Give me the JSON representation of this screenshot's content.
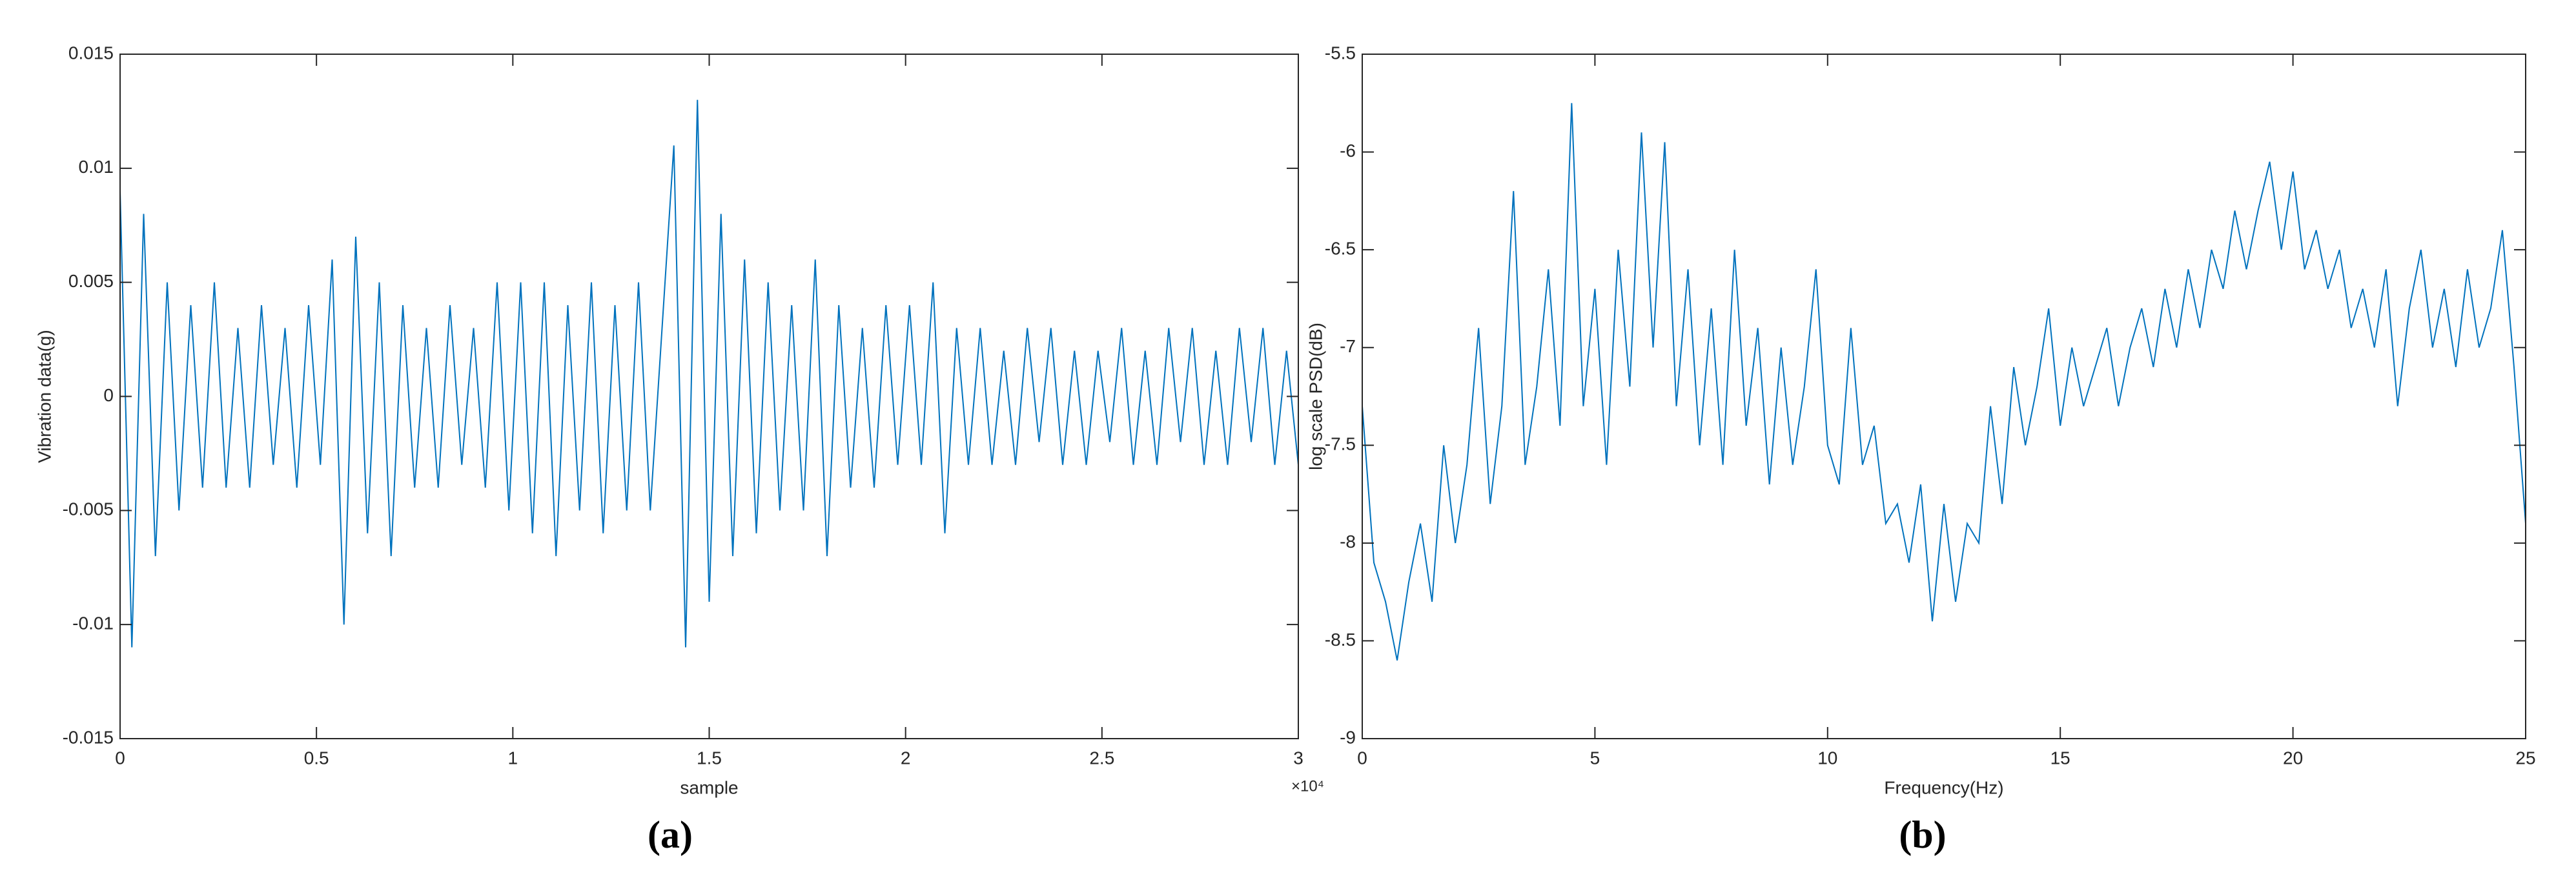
{
  "chart_data": [
    {
      "type": "line",
      "color": "#0072bd",
      "caption": "(a)",
      "xlabel": "sample",
      "ylabel": "Vibration data(g)",
      "x_multiplier": "×10⁴",
      "xlim": [
        0,
        30000
      ],
      "ylim": [
        -0.015,
        0.015
      ],
      "xticks": [
        0,
        {
          "value": 5000,
          "label": "0.5"
        },
        {
          "value": 10000,
          "label": "1"
        },
        {
          "value": 15000,
          "label": "1.5"
        },
        {
          "value": 20000,
          "label": "2"
        },
        {
          "value": 25000,
          "label": "2.5"
        },
        {
          "value": 30000,
          "label": "3"
        }
      ],
      "yticks": [
        -0.015,
        -0.01,
        -0.005,
        0,
        0.005,
        0.01,
        0.015
      ],
      "x": [
        0,
        300,
        600,
        900,
        1200,
        1500,
        1800,
        2100,
        2400,
        2700,
        3000,
        3300,
        3600,
        3900,
        4200,
        4500,
        4800,
        5100,
        5400,
        5700,
        6000,
        6300,
        6600,
        6900,
        7200,
        7500,
        7800,
        8100,
        8400,
        8700,
        9000,
        9300,
        9600,
        9900,
        10200,
        10500,
        10800,
        11100,
        11400,
        11700,
        12000,
        12300,
        12600,
        12900,
        13200,
        13500,
        13800,
        14100,
        14400,
        14700,
        15000,
        15300,
        15600,
        15900,
        16200,
        16500,
        16800,
        17100,
        17400,
        17700,
        18000,
        18300,
        18600,
        18900,
        19200,
        19500,
        19800,
        20100,
        20400,
        20700,
        21000,
        21300,
        21600,
        21900,
        22200,
        22500,
        22800,
        23100,
        23400,
        23700,
        24000,
        24300,
        24600,
        24900,
        25200,
        25500,
        25800,
        26100,
        26400,
        26700,
        27000,
        27300,
        27600,
        27900,
        28200,
        28500,
        28800,
        29100,
        29400,
        29700,
        30000
      ],
      "values": [
        0.009,
        -0.011,
        0.008,
        -0.007,
        0.005,
        -0.005,
        0.004,
        -0.004,
        0.005,
        -0.004,
        0.003,
        -0.004,
        0.004,
        -0.003,
        0.003,
        -0.004,
        0.004,
        -0.003,
        0.006,
        -0.01,
        0.007,
        -0.006,
        0.005,
        -0.007,
        0.004,
        -0.004,
        0.003,
        -0.004,
        0.004,
        -0.003,
        0.003,
        -0.004,
        0.005,
        -0.005,
        0.005,
        -0.006,
        0.005,
        -0.007,
        0.004,
        -0.005,
        0.005,
        -0.006,
        0.004,
        -0.005,
        0.005,
        -0.005,
        0.003,
        0.011,
        -0.011,
        0.013,
        -0.009,
        0.008,
        -0.007,
        0.006,
        -0.006,
        0.005,
        -0.005,
        0.004,
        -0.005,
        0.006,
        -0.007,
        0.004,
        -0.004,
        0.003,
        -0.004,
        0.004,
        -0.003,
        0.004,
        -0.003,
        0.005,
        -0.006,
        0.003,
        -0.003,
        0.003,
        -0.003,
        0.002,
        -0.003,
        0.003,
        -0.002,
        0.003,
        -0.003,
        0.002,
        -0.003,
        0.002,
        -0.002,
        0.003,
        -0.003,
        0.002,
        -0.003,
        0.003,
        -0.002,
        0.003,
        -0.003,
        0.002,
        -0.003,
        0.003,
        -0.002,
        0.003,
        -0.003,
        0.002,
        -0.003
      ]
    },
    {
      "type": "line",
      "color": "#0072bd",
      "caption": "(b)",
      "xlabel": "Frequency(Hz)",
      "ylabel": "log scale PSD(dB)",
      "xlim": [
        0,
        25
      ],
      "ylim": [
        -9,
        -5.5
      ],
      "xticks": [
        0,
        5,
        10,
        15,
        20,
        25
      ],
      "yticks": [
        -9,
        -8.5,
        -8,
        -7.5,
        -7,
        -6.5,
        -6,
        -5.5
      ],
      "x": [
        0,
        0.25,
        0.5,
        0.75,
        1,
        1.25,
        1.5,
        1.75,
        2,
        2.25,
        2.5,
        2.75,
        3,
        3.25,
        3.5,
        3.75,
        4,
        4.25,
        4.5,
        4.75,
        5,
        5.25,
        5.5,
        5.75,
        6,
        6.25,
        6.5,
        6.75,
        7,
        7.25,
        7.5,
        7.75,
        8,
        8.25,
        8.5,
        8.75,
        9,
        9.25,
        9.5,
        9.75,
        10,
        10.25,
        10.5,
        10.75,
        11,
        11.25,
        11.5,
        11.75,
        12,
        12.25,
        12.5,
        12.75,
        13,
        13.25,
        13.5,
        13.75,
        14,
        14.25,
        14.5,
        14.75,
        15,
        15.25,
        15.5,
        15.75,
        16,
        16.25,
        16.5,
        16.75,
        17,
        17.25,
        17.5,
        17.75,
        18,
        18.25,
        18.5,
        18.75,
        19,
        19.25,
        19.5,
        19.75,
        20,
        20.25,
        20.5,
        20.75,
        21,
        21.25,
        21.5,
        21.75,
        22,
        22.25,
        22.5,
        22.75,
        23,
        23.25,
        23.5,
        23.75,
        24,
        24.25,
        24.5,
        24.75,
        25
      ],
      "values": [
        -7.3,
        -8.1,
        -8.3,
        -8.6,
        -8.2,
        -7.9,
        -8.3,
        -7.5,
        -8.0,
        -7.6,
        -6.9,
        -7.8,
        -7.3,
        -6.2,
        -7.6,
        -7.2,
        -6.6,
        -7.4,
        -5.75,
        -7.3,
        -6.7,
        -7.6,
        -6.5,
        -7.2,
        -5.9,
        -7.0,
        -5.95,
        -7.3,
        -6.6,
        -7.5,
        -6.8,
        -7.6,
        -6.5,
        -7.4,
        -6.9,
        -7.7,
        -7.0,
        -7.6,
        -7.2,
        -6.6,
        -7.5,
        -7.7,
        -6.9,
        -7.6,
        -7.4,
        -7.9,
        -7.8,
        -8.1,
        -7.7,
        -8.4,
        -7.8,
        -8.3,
        -7.9,
        -8.0,
        -7.3,
        -7.8,
        -7.1,
        -7.5,
        -7.2,
        -6.8,
        -7.4,
        -7.0,
        -7.3,
        -7.1,
        -6.9,
        -7.3,
        -7.0,
        -6.8,
        -7.1,
        -6.7,
        -7.0,
        -6.6,
        -6.9,
        -6.5,
        -6.7,
        -6.3,
        -6.6,
        -6.3,
        -6.05,
        -6.5,
        -6.1,
        -6.6,
        -6.4,
        -6.7,
        -6.5,
        -6.9,
        -6.7,
        -7.0,
        -6.6,
        -7.3,
        -6.8,
        -6.5,
        -7.0,
        -6.7,
        -7.1,
        -6.6,
        -7.0,
        -6.8,
        -6.4,
        -7.1,
        -7.9
      ]
    }
  ]
}
